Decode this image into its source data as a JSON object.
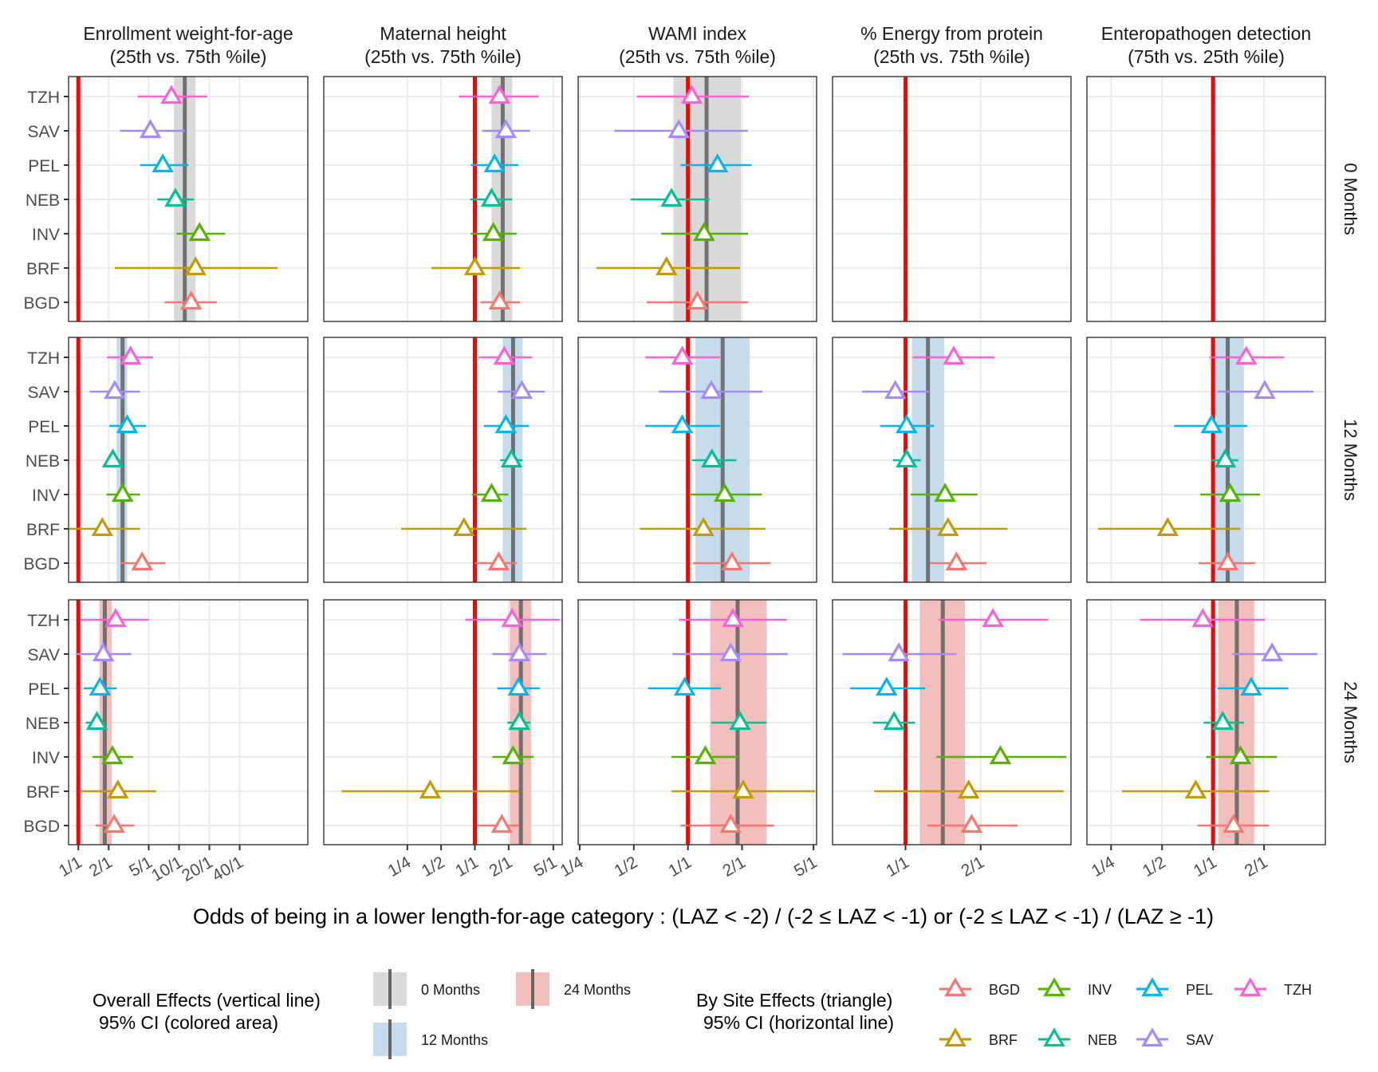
{
  "chart_data": {
    "type": "forest-plot-facet",
    "scale": "log",
    "xlabel": "Odds of being in a lower length-for-age category : (LAZ < -2) / (-2 ≤ LAZ < -1) or (-2 ≤ LAZ < -1) / (LAZ ≥ -1)",
    "null_line": 1,
    "sites": [
      "TZH",
      "SAV",
      "PEL",
      "NEB",
      "INV",
      "BRF",
      "BGD"
    ],
    "site_colors": {
      "BGD": "#F8766D",
      "BRF": "#C49A00",
      "INV": "#53B400",
      "NEB": "#00C094",
      "PEL": "#00B6EB",
      "SAV": "#A58AFF",
      "TZH": "#FB61D7"
    },
    "rows": [
      "0 Months",
      "12 Months",
      "24 Months"
    ],
    "row_colors": {
      "0 Months": "#d9d9d9",
      "12 Months": "#c6dcec",
      "24 Months": "#f2bfbc"
    },
    "overall_line_color": "#666666",
    "null_line_color": "#ff0000",
    "panels": [
      {
        "title_line1": "Enrollment weight-for-age",
        "title_line2": "(25th vs. 75th %ile)",
        "xlim": [
          0.8,
          190
        ],
        "ticks": [
          {
            "v": 1,
            "label": "1/1"
          },
          {
            "v": 2,
            "label": "2/1"
          },
          {
            "v": 5,
            "label": "5/1"
          },
          {
            "v": 10,
            "label": "10/1"
          },
          {
            "v": 20,
            "label": "20/1"
          },
          {
            "v": 40,
            "label": "40/1"
          }
        ],
        "rows": [
          {
            "overall": {
              "est": 11.4,
              "lo": 8.9,
              "hi": 14.6
            },
            "sites": {
              "TZH": [
                8.4,
                3.9,
                19.1
              ],
              "SAV": [
                5.2,
                2.6,
                11.4
              ],
              "PEL": [
                6.9,
                4.1,
                12.4
              ],
              "NEB": [
                9.2,
                6.1,
                14.1
              ],
              "INV": [
                16.0,
                9.4,
                28.7
              ],
              "BRF": [
                14.6,
                2.3,
                95
              ],
              "BGD": [
                13.2,
                7.2,
                23.6
              ]
            }
          },
          {
            "overall": {
              "est": 2.75,
              "lo": 2.4,
              "hi": 3.06
            },
            "sites": {
              "TZH": [
                3.3,
                1.93,
                5.5
              ],
              "SAV": [
                2.3,
                1.3,
                4.1
              ],
              "PEL": [
                3.06,
                2.03,
                4.7
              ],
              "NEB": [
                2.2,
                1.9,
                2.6
              ],
              "INV": [
                2.75,
                1.9,
                4.1
              ],
              "BRF": [
                1.73,
                0.74,
                4.1
              ],
              "BGD": [
                4.3,
                2.6,
                7.3
              ]
            }
          },
          {
            "overall": {
              "est": 1.83,
              "lo": 1.62,
              "hi": 2.15
            },
            "sites": {
              "TZH": [
                2.35,
                1.04,
                5.0
              ],
              "SAV": [
                1.77,
                0.95,
                3.35
              ],
              "PEL": [
                1.64,
                1.13,
                2.4
              ],
              "NEB": [
                1.53,
                1.19,
                1.83
              ],
              "INV": [
                2.18,
                1.38,
                3.5
              ],
              "BRF": [
                2.47,
                1.05,
                5.9
              ],
              "BGD": [
                2.27,
                1.48,
                3.6
              ]
            }
          }
        ]
      },
      {
        "title_line1": "Maternal height",
        "title_line2": "(25th vs. 75th %ile)",
        "xlim": [
          0.045,
          6.0
        ],
        "ticks": [
          {
            "v": 0.25,
            "label": "1/4"
          },
          {
            "v": 0.5,
            "label": "1/2"
          },
          {
            "v": 1,
            "label": "1/1"
          },
          {
            "v": 2,
            "label": "2/1"
          },
          {
            "v": 5,
            "label": "5/1"
          }
        ],
        "rows": [
          {
            "overall": {
              "est": 1.77,
              "lo": 1.41,
              "hi": 2.15
            },
            "sites": {
              "TZH": [
                1.66,
                0.72,
                3.7
              ],
              "SAV": [
                1.89,
                1.16,
                3.1
              ],
              "PEL": [
                1.5,
                0.92,
                2.45
              ],
              "NEB": [
                1.41,
                0.91,
                2.15
              ],
              "INV": [
                1.46,
                0.92,
                2.37
              ],
              "BRF": [
                1.0,
                0.41,
                2.53
              ],
              "BGD": [
                1.66,
                1.12,
                2.53
              ]
            }
          },
          {
            "overall": {
              "est": 2.19,
              "lo": 1.77,
              "hi": 2.66
            },
            "sites": {
              "TZH": [
                1.83,
                1.08,
                3.23
              ],
              "SAV": [
                2.62,
                1.6,
                4.2
              ],
              "PEL": [
                1.89,
                1.2,
                3.03
              ],
              "NEB": [
                2.12,
                1.68,
                2.66
              ],
              "INV": [
                1.41,
                0.94,
                1.98
              ],
              "BRF": [
                0.8,
                0.22,
                2.88
              ],
              "BGD": [
                1.63,
                1.0,
                2.37
              ]
            }
          },
          {
            "overall": {
              "est": 2.57,
              "lo": 2.05,
              "hi": 3.18
            },
            "sites": {
              "TZH": [
                2.15,
                0.82,
                5.7
              ],
              "SAV": [
                2.49,
                1.43,
                4.35
              ],
              "PEL": [
                2.45,
                1.58,
                3.8
              ],
              "NEB": [
                2.49,
                1.95,
                3.13
              ],
              "INV": [
                2.19,
                1.43,
                3.34
              ],
              "BRF": [
                0.4,
                0.065,
                2.49
              ],
              "BGD": [
                1.74,
                1.05,
                2.49
              ]
            }
          }
        ]
      },
      {
        "title_line1": "WAMI index",
        "title_line2": "(25th vs. 75th %ile)",
        "xlim": [
          0.245,
          5.2
        ],
        "ticks": [
          {
            "v": 0.25,
            "label": "1/4"
          },
          {
            "v": 0.5,
            "label": "1/2"
          },
          {
            "v": 1,
            "label": "1/1"
          },
          {
            "v": 2,
            "label": "2/1"
          },
          {
            "v": 5,
            "label": "5/1"
          }
        ],
        "rows": [
          {
            "overall": {
              "est": 1.27,
              "lo": 0.83,
              "hi": 1.97
            },
            "sites": {
              "TZH": [
                1.05,
                0.52,
                2.19
              ],
              "SAV": [
                0.89,
                0.39,
                2.16
              ],
              "PEL": [
                1.46,
                0.91,
                2.26
              ],
              "NEB": [
                0.81,
                0.48,
                1.32
              ],
              "INV": [
                1.23,
                0.71,
                2.16
              ],
              "BRF": [
                0.76,
                0.31,
                1.95
              ],
              "BGD": [
                1.13,
                0.59,
                2.16
              ]
            }
          },
          {
            "overall": {
              "est": 1.56,
              "lo": 1.1,
              "hi": 2.21
            },
            "sites": {
              "TZH": [
                0.93,
                0.58,
                1.51
              ],
              "SAV": [
                1.35,
                0.69,
                2.6
              ],
              "PEL": [
                0.93,
                0.58,
                1.51
              ],
              "NEB": [
                1.36,
                1.05,
                1.86
              ],
              "INV": [
                1.6,
                1.02,
                2.58
              ],
              "BRF": [
                1.22,
                0.54,
                2.7
              ],
              "BGD": [
                1.76,
                1.07,
                2.89
              ]
            }
          },
          {
            "overall": {
              "est": 1.89,
              "lo": 1.33,
              "hi": 2.74
            },
            "sites": {
              "TZH": [
                1.78,
                0.89,
                3.55
              ],
              "SAV": [
                1.73,
                0.82,
                3.59
              ],
              "PEL": [
                0.96,
                0.6,
                1.53
              ],
              "NEB": [
                1.95,
                1.35,
                2.74
              ],
              "INV": [
                1.25,
                0.81,
                1.89
              ],
              "BRF": [
                2.03,
                0.81,
                5.1
              ],
              "BGD": [
                1.73,
                0.91,
                3.01
              ]
            }
          }
        ]
      },
      {
        "title_line1": "% Energy from protein",
        "title_line2": "(25th vs. 75th %ile)",
        "xlim": [
          0.51,
          4.6
        ],
        "ticks": [
          {
            "v": 1,
            "label": "1/1"
          },
          {
            "v": 2,
            "label": "2/1"
          }
        ],
        "rows": [
          null,
          {
            "overall": {
              "est": 1.23,
              "lo": 1.06,
              "hi": 1.43
            },
            "sites": {
              "TZH": [
                1.56,
                1.07,
                2.27
              ],
              "SAV": [
                0.91,
                0.67,
                1.24
              ],
              "PEL": [
                1.01,
                0.79,
                1.3
              ],
              "NEB": [
                1.01,
                0.89,
                1.15
              ],
              "INV": [
                1.44,
                1.05,
                1.94
              ],
              "BRF": [
                1.48,
                0.86,
                2.56
              ],
              "BGD": [
                1.6,
                1.25,
                2.11
              ]
            }
          },
          {
            "overall": {
              "est": 1.41,
              "lo": 1.14,
              "hi": 1.73
            },
            "sites": {
              "TZH": [
                2.24,
                1.36,
                3.73
              ],
              "SAV": [
                0.94,
                0.56,
                1.6
              ],
              "PEL": [
                0.84,
                0.6,
                1.2
              ],
              "NEB": [
                0.9,
                0.74,
                1.09
              ],
              "INV": [
                2.4,
                1.33,
                4.4
              ],
              "BRF": [
                1.79,
                0.75,
                4.3
              ],
              "BGD": [
                1.84,
                1.22,
                2.81
              ]
            }
          }
        ]
      },
      {
        "title_line1": "Enteropathogen detection",
        "title_line2": "(75th vs. 25th %ile)",
        "xlim": [
          0.18,
          4.6
        ],
        "ticks": [
          {
            "v": 0.25,
            "label": "1/4"
          },
          {
            "v": 0.5,
            "label": "1/2"
          },
          {
            "v": 1,
            "label": "1/1"
          },
          {
            "v": 2,
            "label": "2/1"
          }
        ],
        "rows": [
          null,
          {
            "overall": {
              "est": 1.22,
              "lo": 1.04,
              "hi": 1.52
            },
            "sites": {
              "TZH": [
                1.57,
                0.95,
                2.63
              ],
              "SAV": [
                2.02,
                1.06,
                3.91
              ],
              "PEL": [
                0.98,
                0.59,
                1.59
              ],
              "NEB": [
                1.18,
                0.98,
                1.41
              ],
              "INV": [
                1.26,
                0.84,
                1.89
              ],
              "BRF": [
                0.54,
                0.21,
                1.45
              ],
              "BGD": [
                1.22,
                0.82,
                1.77
              ]
            }
          },
          {
            "overall": {
              "est": 1.38,
              "lo": 1.07,
              "hi": 1.75
            },
            "sites": {
              "TZH": [
                0.87,
                0.37,
                2.02
              ],
              "SAV": [
                2.23,
                1.3,
                4.13
              ],
              "PEL": [
                1.68,
                1.06,
                2.78
              ],
              "NEB": [
                1.14,
                0.88,
                1.52
              ],
              "INV": [
                1.45,
                0.91,
                2.38
              ],
              "BRF": [
                0.79,
                0.29,
                2.14
              ],
              "BGD": [
                1.32,
                0.81,
                2.14
              ]
            }
          }
        ]
      }
    ],
    "legend_overall": {
      "title_line1": "Overall Effects (vertical line)",
      "title_line2": "95% CI (colored area)",
      "items": [
        "0 Months",
        "12 Months",
        "24 Months"
      ]
    },
    "legend_sites": {
      "title_line1": "By Site Effects (triangle)",
      "title_line2": "95% CI (horizontal line)",
      "items": [
        "BGD",
        "INV",
        "PEL",
        "TZH",
        "BRF",
        "NEB",
        "SAV"
      ]
    }
  }
}
